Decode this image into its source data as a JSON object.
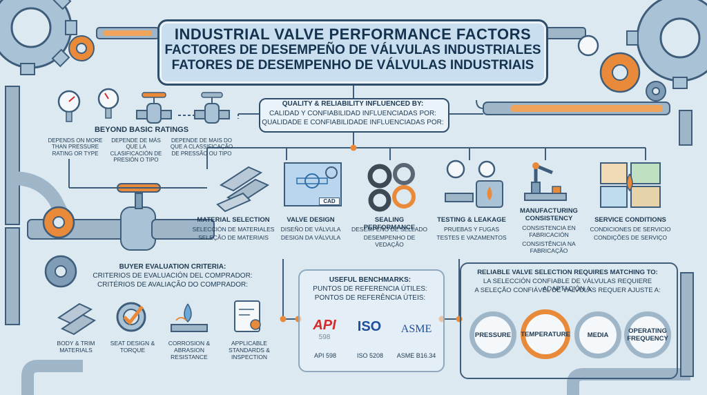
{
  "title": {
    "en": "INDUSTRIAL VALVE PERFORMANCE FACTORS",
    "es": "FACTORES DE DESEMPEÑO DE VÁLVULAS INDUSTRIALES",
    "pt": "FATORES DE DESEMPENHO DE VÁLVULAS INDUSTRIAIS"
  },
  "beyond": {
    "heading": "BEYOND BASIC RATINGS",
    "en": "DEPENDS ON MORE THAN PRESSURE RATING OR TYPE",
    "es": "DEPENDE DE MÁS QUE LA CLASIFICACIÓN DE PRESIÓN O TIPO",
    "pt": "DEPENDE DE MAIS DO QUE A CLASSIFICAÇÃO DE PRESSÃO OU TIPO"
  },
  "quality": {
    "en": "QUALITY & RELIABILITY INFLUENCED BY:",
    "es": "CALIDAD Y CONFIABILIDAD INFLUENCIADAS POR:",
    "pt": "QUALIDADE E CONFIABILIDADE INFLUENCIADAS POR:"
  },
  "factors": [
    {
      "en": "MATERIAL SELECTION",
      "es": "SELECCIÓN DE MATERIALES",
      "pt": "SELEÇÃO DE MATERIAIS"
    },
    {
      "en": "VALVE DESIGN",
      "es": "DISEÑO DE VÁLVULA",
      "pt": "DESIGN DA VÁLVULA"
    },
    {
      "en": "SEALING PERFORMANCE",
      "es": "DESEMPEÑO DE SELLADO",
      "pt": "DESEMPENHO DE VEDAÇÃO"
    },
    {
      "en": "TESTING & LEAKAGE",
      "es": "PRUEBAS Y FUGAS",
      "pt": "TESTES E VAZAMENTOS"
    },
    {
      "en": "MANUFACTURING CONSISTENCY",
      "es": "CONSISTENCIA EN FABRICACIÓN",
      "pt": "CONSISTÊNCIA NA FABRICAÇÃO"
    },
    {
      "en": "SERVICE CONDITIONS",
      "es": "CONDICIONES DE SERVICIO",
      "pt": "CONDIÇÕES DE SERVIÇO"
    }
  ],
  "cad_label": "CAD",
  "buyer": {
    "en": "BUYER EVALUATION CRITERIA:",
    "es": "CRITERIOS DE EVALUACIÓN DEL COMPRADOR:",
    "pt": "CRITÉRIOS DE AVALIAÇÃO DO COMPRADOR:",
    "items": [
      "BODY & TRIM MATERIALS",
      "SEAT DESIGN & TORQUE",
      "CORROSION & ABRASION RESISTANCE",
      "APPLICABLE STANDARDS & INSPECTION"
    ]
  },
  "benchmarks": {
    "en": "USEFUL BENCHMARKS:",
    "es": "PUNTOS DE REFERENCIA ÚTILES:",
    "pt": "PONTOS DE REFERÊNCIA ÚTEIS:",
    "logos": [
      {
        "logo": "API",
        "sub": "598",
        "caption": "API 598",
        "color": "#d32a2a"
      },
      {
        "logo": "ISO",
        "sub": "",
        "caption": "ISO 5208",
        "color": "#1d4f9c"
      },
      {
        "logo": "ASME",
        "sub": "",
        "caption": "ASME B16.34",
        "color": "#1d4f9c"
      }
    ]
  },
  "selection": {
    "en": "RELIABLE VALVE SELECTION REQUIRES MATCHING TO:",
    "es": "LA SELECCIÓN CONFIABLE DE VÁLVULAS REQUIERE ADAPTACIÓN A:",
    "pt": "A SELEÇÃO CONFIÁVEL DE VÁLVULAS REQUER AJUSTE A:",
    "items": [
      "PRESSURE",
      "TEMPERATURE",
      "MEDIA",
      "OPERATING FREQUENCY"
    ]
  },
  "colors": {
    "navy": "#1f3a52",
    "pipe": "#9fb6c9",
    "orange": "#e88a3a",
    "background": "#dce9f1"
  }
}
